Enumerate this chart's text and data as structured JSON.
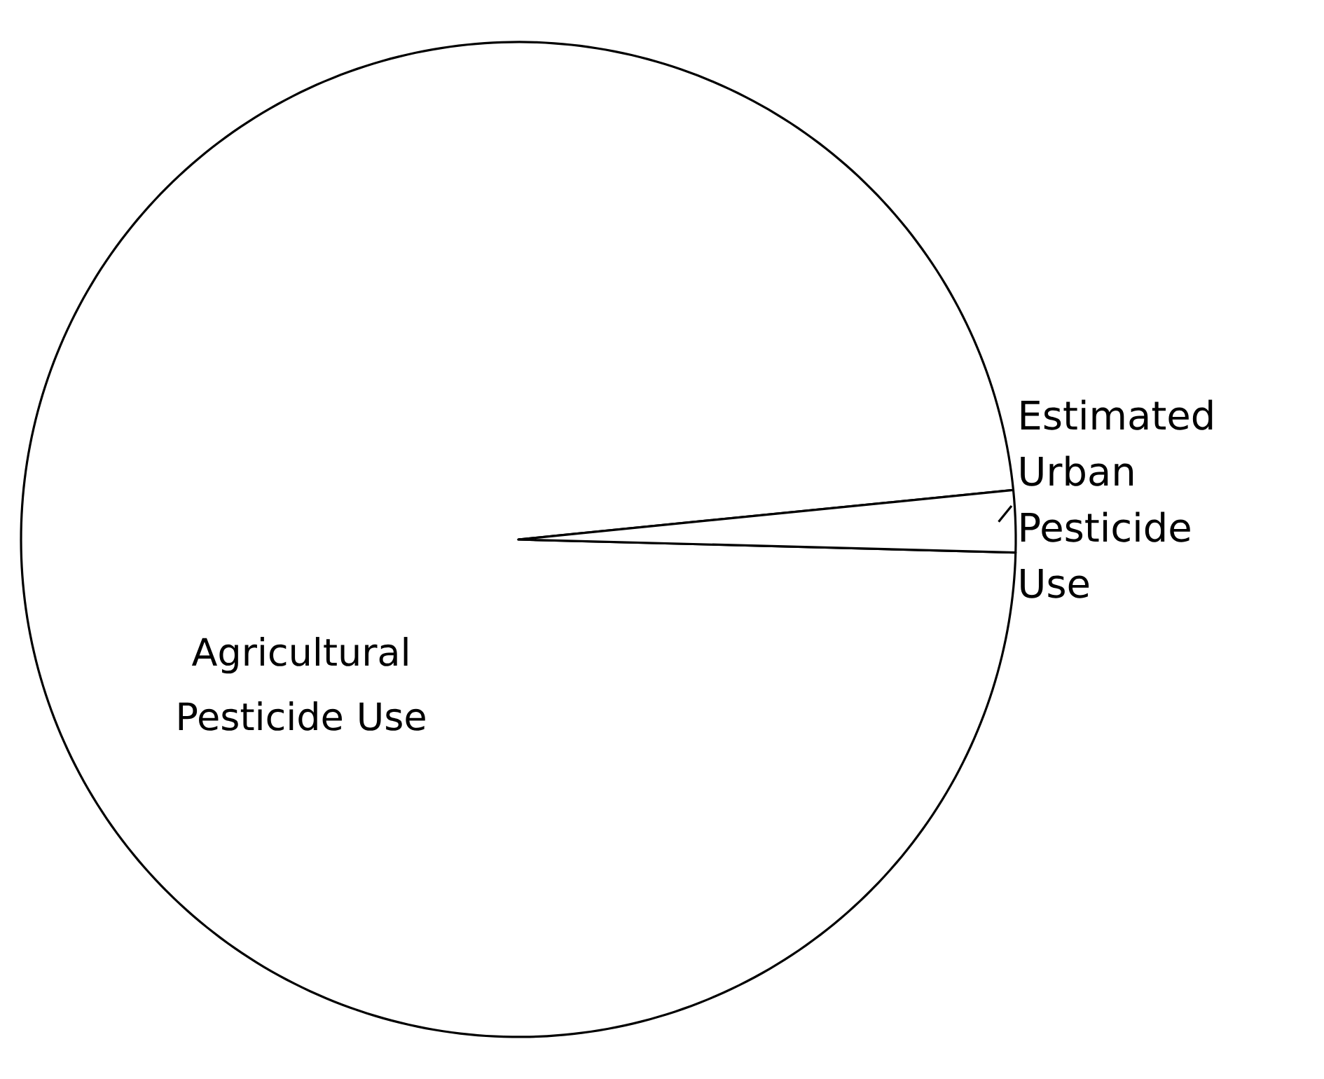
{
  "chart_data": {
    "type": "pie",
    "categories": [
      "Agricultural Pesticide Use",
      "Estimated Urban Pesticide Use"
    ],
    "values": [
      98,
      2
    ],
    "colors": [
      "#ffffff",
      "#ffffff"
    ]
  }
}
